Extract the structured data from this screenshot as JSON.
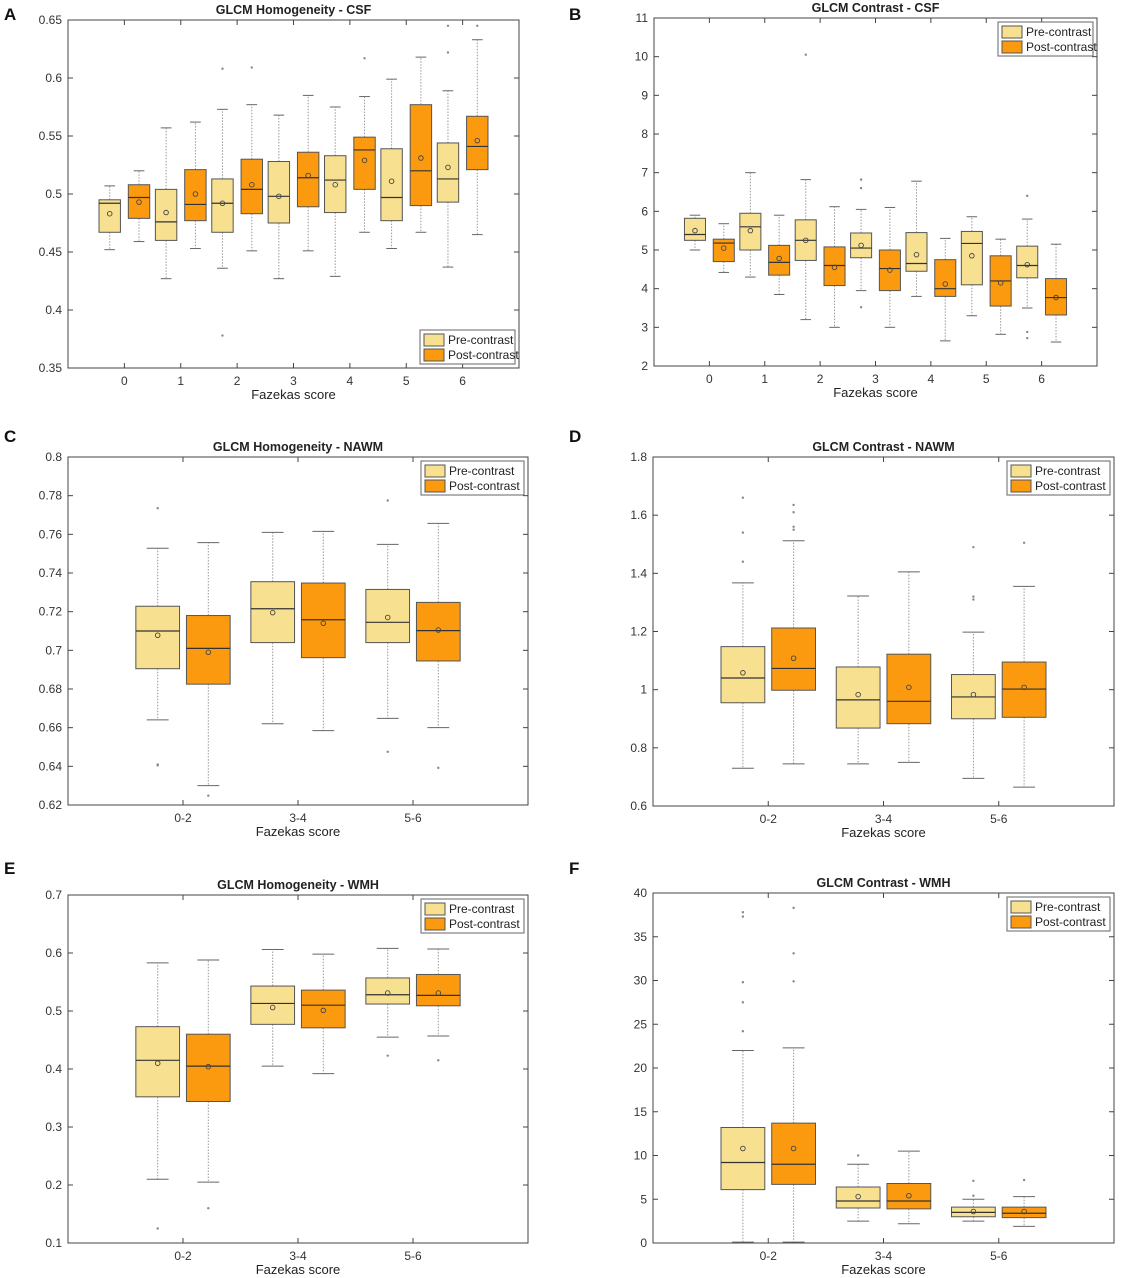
{
  "figure": {
    "colors": {
      "pre": "#f7e08f",
      "post": "#fb9a0f",
      "box_edge": "#555555",
      "axis": "#444444"
    }
  },
  "chart_data": [
    {
      "panel": "A",
      "type": "box",
      "title": "GLCM Homogeneity - CSF",
      "xlabel": "Fazekas score",
      "ylabel": "",
      "categories": [
        "0",
        "1",
        "2",
        "3",
        "4",
        "5",
        "6"
      ],
      "ylim": [
        0.35,
        0.65
      ],
      "yticks": [
        0.35,
        0.4,
        0.45,
        0.5,
        0.55,
        0.6,
        0.65
      ],
      "ytick_labels": [
        "0.35",
        "0.4",
        "0.45",
        "0.5",
        "0.55",
        "0.6",
        "0.65"
      ],
      "legend": {
        "position": "bottom-right",
        "entries": [
          "Pre-contrast",
          "Post-contrast"
        ]
      },
      "series": [
        {
          "name": "Pre-contrast",
          "boxes": [
            {
              "min": 0.452,
              "q1": 0.467,
              "median": 0.492,
              "q3": 0.495,
              "max": 0.507,
              "mean": 0.483,
              "outliers": []
            },
            {
              "min": 0.427,
              "q1": 0.46,
              "median": 0.476,
              "q3": 0.504,
              "max": 0.557,
              "mean": 0.484,
              "outliers": []
            },
            {
              "min": 0.436,
              "q1": 0.467,
              "median": 0.492,
              "q3": 0.513,
              "max": 0.573,
              "mean": 0.492,
              "outliers": [
                0.378,
                0.608
              ]
            },
            {
              "min": 0.427,
              "q1": 0.475,
              "median": 0.498,
              "q3": 0.528,
              "max": 0.568,
              "mean": 0.498,
              "outliers": []
            },
            {
              "min": 0.429,
              "q1": 0.484,
              "median": 0.512,
              "q3": 0.533,
              "max": 0.575,
              "mean": 0.508,
              "outliers": []
            },
            {
              "min": 0.453,
              "q1": 0.477,
              "median": 0.497,
              "q3": 0.539,
              "max": 0.599,
              "mean": 0.511,
              "outliers": []
            },
            {
              "min": 0.437,
              "q1": 0.493,
              "median": 0.513,
              "q3": 0.544,
              "max": 0.589,
              "mean": 0.523,
              "outliers": [
                0.622,
                0.645
              ]
            }
          ]
        },
        {
          "name": "Post-contrast",
          "boxes": [
            {
              "min": 0.459,
              "q1": 0.479,
              "median": 0.497,
              "q3": 0.508,
              "max": 0.52,
              "mean": 0.493,
              "outliers": []
            },
            {
              "min": 0.453,
              "q1": 0.477,
              "median": 0.491,
              "q3": 0.521,
              "max": 0.562,
              "mean": 0.5,
              "outliers": []
            },
            {
              "min": 0.451,
              "q1": 0.483,
              "median": 0.504,
              "q3": 0.53,
              "max": 0.577,
              "mean": 0.508,
              "outliers": [
                0.609
              ]
            },
            {
              "min": 0.451,
              "q1": 0.489,
              "median": 0.514,
              "q3": 0.536,
              "max": 0.585,
              "mean": 0.516,
              "outliers": []
            },
            {
              "min": 0.467,
              "q1": 0.504,
              "median": 0.538,
              "q3": 0.549,
              "max": 0.584,
              "mean": 0.529,
              "outliers": [
                0.617
              ]
            },
            {
              "min": 0.467,
              "q1": 0.49,
              "median": 0.52,
              "q3": 0.577,
              "max": 0.618,
              "mean": 0.531,
              "outliers": []
            },
            {
              "min": 0.465,
              "q1": 0.521,
              "median": 0.541,
              "q3": 0.567,
              "max": 0.633,
              "mean": 0.546,
              "outliers": [
                0.645
              ]
            }
          ]
        }
      ]
    },
    {
      "panel": "B",
      "type": "box",
      "title": "GLCM Contrast - CSF",
      "xlabel": "Fazekas score",
      "ylabel": "",
      "categories": [
        "0",
        "1",
        "2",
        "3",
        "4",
        "5",
        "6"
      ],
      "ylim": [
        2,
        11
      ],
      "yticks": [
        2,
        3,
        4,
        5,
        6,
        7,
        8,
        9,
        10,
        11
      ],
      "ytick_labels": [
        "2",
        "3",
        "4",
        "5",
        "6",
        "7",
        "8",
        "9",
        "10",
        "11"
      ],
      "legend": {
        "position": "top-right",
        "entries": [
          "Pre-contrast",
          "Post-contrast"
        ]
      },
      "series": [
        {
          "name": "Pre-contrast",
          "boxes": [
            {
              "min": 5.0,
              "q1": 5.25,
              "median": 5.4,
              "q3": 5.82,
              "max": 5.9,
              "mean": 5.5,
              "outliers": []
            },
            {
              "min": 4.3,
              "q1": 5.0,
              "median": 5.6,
              "q3": 5.95,
              "max": 7.0,
              "mean": 5.5,
              "outliers": []
            },
            {
              "min": 3.2,
              "q1": 4.73,
              "median": 5.25,
              "q3": 5.78,
              "max": 6.82,
              "mean": 5.25,
              "outliers": [
                10.05
              ]
            },
            {
              "min": 3.95,
              "q1": 4.8,
              "median": 5.05,
              "q3": 5.44,
              "max": 6.05,
              "mean": 5.12,
              "outliers": [
                3.52,
                6.6,
                6.82
              ]
            },
            {
              "min": 3.8,
              "q1": 4.45,
              "median": 4.65,
              "q3": 5.45,
              "max": 6.78,
              "mean": 4.88,
              "outliers": []
            },
            {
              "min": 3.3,
              "q1": 4.1,
              "median": 5.17,
              "q3": 5.48,
              "max": 5.86,
              "mean": 4.85,
              "outliers": []
            },
            {
              "min": 3.5,
              "q1": 4.28,
              "median": 4.6,
              "q3": 5.1,
              "max": 5.8,
              "mean": 4.62,
              "outliers": [
                2.72,
                2.88,
                6.4
              ]
            }
          ]
        },
        {
          "name": "Post-contrast",
          "boxes": [
            {
              "min": 4.42,
              "q1": 4.7,
              "median": 5.18,
              "q3": 5.28,
              "max": 5.68,
              "mean": 5.05,
              "outliers": []
            },
            {
              "min": 3.85,
              "q1": 4.35,
              "median": 4.68,
              "q3": 5.12,
              "max": 5.9,
              "mean": 4.78,
              "outliers": []
            },
            {
              "min": 3.0,
              "q1": 4.08,
              "median": 4.6,
              "q3": 5.08,
              "max": 6.12,
              "mean": 4.55,
              "outliers": []
            },
            {
              "min": 3.0,
              "q1": 3.95,
              "median": 4.52,
              "q3": 5.0,
              "max": 6.1,
              "mean": 4.48,
              "outliers": []
            },
            {
              "min": 2.65,
              "q1": 3.8,
              "median": 4.0,
              "q3": 4.75,
              "max": 5.3,
              "mean": 4.12,
              "outliers": []
            },
            {
              "min": 2.82,
              "q1": 3.55,
              "median": 4.2,
              "q3": 4.85,
              "max": 5.28,
              "mean": 4.15,
              "outliers": []
            },
            {
              "min": 2.62,
              "q1": 3.32,
              "median": 3.77,
              "q3": 4.26,
              "max": 5.15,
              "mean": 3.77,
              "outliers": []
            }
          ]
        }
      ]
    },
    {
      "panel": "C",
      "type": "box",
      "title": "GLCM Homogeneity - NAWM",
      "xlabel": "Fazekas score",
      "ylabel": "",
      "categories": [
        "0-2",
        "3-4",
        "5-6"
      ],
      "ylim": [
        0.62,
        0.8
      ],
      "yticks": [
        0.62,
        0.64,
        0.66,
        0.68,
        0.7,
        0.72,
        0.74,
        0.76,
        0.78,
        0.8
      ],
      "ytick_labels": [
        "0.62",
        "0.64",
        "0.66",
        "0.68",
        "0.7",
        "0.72",
        "0.74",
        "0.76",
        "0.78",
        "0.8"
      ],
      "legend": {
        "position": "top-right",
        "entries": [
          "Pre-contrast",
          "Post-contrast"
        ]
      },
      "series": [
        {
          "name": "Pre-contrast",
          "boxes": [
            {
              "min": 0.664,
              "q1": 0.6905,
              "median": 0.71,
              "q3": 0.7228,
              "max": 0.7528,
              "mean": 0.7078,
              "outliers": [
                0.6405,
                0.641,
                0.7735
              ]
            },
            {
              "min": 0.662,
              "q1": 0.704,
              "median": 0.7215,
              "q3": 0.7355,
              "max": 0.761,
              "mean": 0.7195,
              "outliers": []
            },
            {
              "min": 0.6648,
              "q1": 0.704,
              "median": 0.7145,
              "q3": 0.7315,
              "max": 0.7548,
              "mean": 0.717,
              "outliers": [
                0.6475,
                0.7775
              ]
            }
          ]
        },
        {
          "name": "Post-contrast",
          "boxes": [
            {
              "min": 0.63,
              "q1": 0.6825,
              "median": 0.701,
              "q3": 0.718,
              "max": 0.7557,
              "mean": 0.699,
              "outliers": [
                0.6248
              ]
            },
            {
              "min": 0.6585,
              "q1": 0.6962,
              "median": 0.7158,
              "q3": 0.7348,
              "max": 0.7615,
              "mean": 0.714,
              "outliers": []
            },
            {
              "min": 0.66,
              "q1": 0.6945,
              "median": 0.7102,
              "q3": 0.7248,
              "max": 0.7657,
              "mean": 0.7105,
              "outliers": [
                0.6392
              ]
            }
          ]
        }
      ]
    },
    {
      "panel": "D",
      "type": "box",
      "title": "GLCM Contrast - NAWM",
      "xlabel": "Fazekas score",
      "ylabel": "",
      "categories": [
        "0-2",
        "3-4",
        "5-6"
      ],
      "ylim": [
        0.6,
        1.8
      ],
      "yticks": [
        0.6,
        0.8,
        1.0,
        1.2,
        1.4,
        1.6,
        1.8
      ],
      "ytick_labels": [
        "0.6",
        "0.8",
        "1",
        "1.2",
        "1.4",
        "1.6",
        "1.8"
      ],
      "legend": {
        "position": "top-right",
        "entries": [
          "Pre-contrast",
          "Post-contrast"
        ]
      },
      "series": [
        {
          "name": "Pre-contrast",
          "boxes": [
            {
              "min": 0.73,
              "q1": 0.955,
              "median": 1.04,
              "q3": 1.148,
              "max": 1.367,
              "mean": 1.058,
              "outliers": [
                1.44,
                1.54,
                1.66
              ]
            },
            {
              "min": 0.745,
              "q1": 0.868,
              "median": 0.965,
              "q3": 1.078,
              "max": 1.322,
              "mean": 0.983,
              "outliers": []
            },
            {
              "min": 0.695,
              "q1": 0.9,
              "median": 0.975,
              "q3": 1.052,
              "max": 1.198,
              "mean": 0.983,
              "outliers": [
                1.31,
                1.32,
                1.49
              ]
            }
          ]
        },
        {
          "name": "Post-contrast",
          "boxes": [
            {
              "min": 0.745,
              "q1": 0.998,
              "median": 1.073,
              "q3": 1.212,
              "max": 1.512,
              "mean": 1.108,
              "outliers": [
                1.55,
                1.56,
                1.61,
                1.635
              ]
            },
            {
              "min": 0.75,
              "q1": 0.883,
              "median": 0.96,
              "q3": 1.122,
              "max": 1.405,
              "mean": 1.008,
              "outliers": []
            },
            {
              "min": 0.665,
              "q1": 0.905,
              "median": 1.002,
              "q3": 1.095,
              "max": 1.355,
              "mean": 1.008,
              "outliers": [
                1.505
              ]
            }
          ]
        }
      ]
    },
    {
      "panel": "E",
      "type": "box",
      "title": "GLCM Homogeneity - WMH",
      "xlabel": "Fazekas score",
      "ylabel": "",
      "categories": [
        "0-2",
        "3-4",
        "5-6"
      ],
      "ylim": [
        0.1,
        0.7
      ],
      "yticks": [
        0.1,
        0.2,
        0.3,
        0.4,
        0.5,
        0.6,
        0.7
      ],
      "ytick_labels": [
        "0.1",
        "0.2",
        "0.3",
        "0.4",
        "0.5",
        "0.6",
        "0.7"
      ],
      "legend": {
        "position": "top-right",
        "entries": [
          "Pre-contrast",
          "Post-contrast"
        ]
      },
      "series": [
        {
          "name": "Pre-contrast",
          "boxes": [
            {
              "min": 0.21,
              "q1": 0.352,
              "median": 0.415,
              "q3": 0.473,
              "max": 0.583,
              "mean": 0.41,
              "outliers": [
                0.125
              ]
            },
            {
              "min": 0.405,
              "q1": 0.477,
              "median": 0.513,
              "q3": 0.543,
              "max": 0.606,
              "mean": 0.506,
              "outliers": []
            },
            {
              "min": 0.455,
              "q1": 0.512,
              "median": 0.528,
              "q3": 0.557,
              "max": 0.608,
              "mean": 0.531,
              "outliers": [
                0.423
              ]
            }
          ]
        },
        {
          "name": "Post-contrast",
          "boxes": [
            {
              "min": 0.205,
              "q1": 0.344,
              "median": 0.405,
              "q3": 0.46,
              "max": 0.588,
              "mean": 0.404,
              "outliers": [
                0.16
              ]
            },
            {
              "min": 0.392,
              "q1": 0.471,
              "median": 0.51,
              "q3": 0.536,
              "max": 0.598,
              "mean": 0.501,
              "outliers": []
            },
            {
              "min": 0.457,
              "q1": 0.509,
              "median": 0.527,
              "q3": 0.563,
              "max": 0.607,
              "mean": 0.531,
              "outliers": [
                0.415
              ]
            }
          ]
        }
      ]
    },
    {
      "panel": "F",
      "type": "box",
      "title": "GLCM Contrast - WMH",
      "xlabel": "Fazekas score",
      "ylabel": "",
      "categories": [
        "0-2",
        "3-4",
        "5-6"
      ],
      "ylim": [
        0,
        40
      ],
      "yticks": [
        0,
        5,
        10,
        15,
        20,
        25,
        30,
        35,
        40
      ],
      "ytick_labels": [
        "0",
        "5",
        "10",
        "15",
        "20",
        "25",
        "30",
        "35",
        "40"
      ],
      "legend": {
        "position": "top-right",
        "entries": [
          "Pre-contrast",
          "Post-contrast"
        ]
      },
      "series": [
        {
          "name": "Pre-contrast",
          "boxes": [
            {
              "min": 0.1,
              "q1": 6.1,
              "median": 9.2,
              "q3": 13.2,
              "max": 22.0,
              "mean": 10.8,
              "outliers": [
                24.2,
                27.5,
                29.8,
                37.3,
                37.8
              ]
            },
            {
              "min": 2.5,
              "q1": 4.0,
              "median": 4.8,
              "q3": 6.4,
              "max": 9.0,
              "mean": 5.3,
              "outliers": [
                10.0
              ]
            },
            {
              "min": 2.5,
              "q1": 3.0,
              "median": 3.5,
              "q3": 4.1,
              "max": 5.0,
              "mean": 3.6,
              "outliers": [
                5.4,
                7.1
              ]
            }
          ]
        },
        {
          "name": "Post-contrast",
          "boxes": [
            {
              "min": 0.1,
              "q1": 6.7,
              "median": 9.0,
              "q3": 13.7,
              "max": 22.3,
              "mean": 10.8,
              "outliers": [
                29.9,
                33.1,
                38.3
              ]
            },
            {
              "min": 2.2,
              "q1": 3.9,
              "median": 4.8,
              "q3": 6.8,
              "max": 10.5,
              "mean": 5.4,
              "outliers": []
            },
            {
              "min": 1.9,
              "q1": 2.9,
              "median": 3.4,
              "q3": 4.1,
              "max": 5.3,
              "mean": 3.6,
              "outliers": [
                7.2
              ]
            }
          ]
        }
      ]
    }
  ]
}
